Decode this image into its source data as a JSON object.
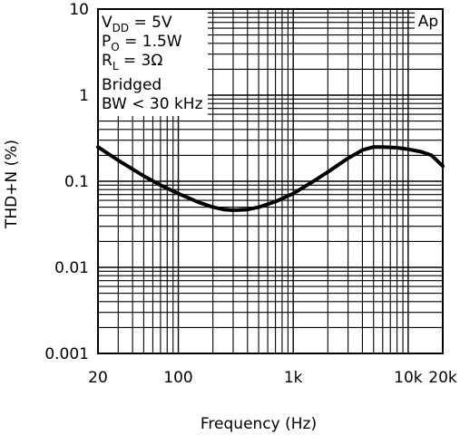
{
  "chart_data": {
    "type": "line",
    "title": "",
    "xlabel": "Frequency (Hz)",
    "ylabel": "THD+N (%)",
    "x_scale": "log",
    "y_scale": "log",
    "xlim": [
      20,
      20000
    ],
    "ylim": [
      0.001,
      10
    ],
    "grid": true,
    "x_ticks": [
      {
        "value": 20,
        "label": "20"
      },
      {
        "value": 100,
        "label": "100"
      },
      {
        "value": 1000,
        "label": "1k"
      },
      {
        "value": 10000,
        "label": "10k"
      },
      {
        "value": 20000,
        "label": "20k"
      }
    ],
    "y_ticks": [
      {
        "value": 10,
        "label": "10"
      },
      {
        "value": 1,
        "label": "1"
      },
      {
        "value": 0.1,
        "label": "0.1"
      },
      {
        "value": 0.01,
        "label": "0.01"
      },
      {
        "value": 0.001,
        "label": "0.001"
      }
    ],
    "annotations": {
      "vdd": {
        "main": "V",
        "sub": "DD",
        "rest": " = 5V"
      },
      "po": {
        "main": "P",
        "sub": "O",
        "rest": " = 1.5W"
      },
      "rl": {
        "main": "R",
        "sub": "L",
        "rest": " = 3Ω"
      },
      "bridged": "Bridged",
      "bw": "BW < 30 kHz",
      "badge": "Ap"
    },
    "series": [
      {
        "x": [
          20,
          30,
          50,
          70,
          100,
          150,
          200,
          250,
          300,
          400,
          500,
          700,
          1000,
          1500,
          2000,
          3000,
          4000,
          5000,
          6000,
          8000,
          10000,
          13000,
          16000,
          20000
        ],
        "y": [
          0.25,
          0.175,
          0.115,
          0.09,
          0.072,
          0.057,
          0.05,
          0.047,
          0.046,
          0.047,
          0.05,
          0.058,
          0.072,
          0.1,
          0.128,
          0.185,
          0.23,
          0.25,
          0.25,
          0.245,
          0.235,
          0.22,
          0.2,
          0.15
        ]
      }
    ]
  }
}
